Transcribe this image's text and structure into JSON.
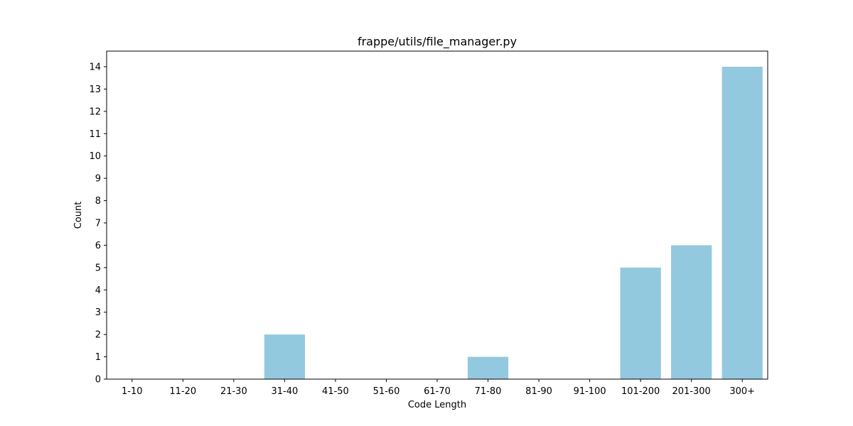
{
  "chart_data": {
    "type": "bar",
    "title": "frappe/utils/file_manager.py",
    "xlabel": "Code Length",
    "ylabel": "Count",
    "categories": [
      "1-10",
      "11-20",
      "21-30",
      "31-40",
      "41-50",
      "51-60",
      "61-70",
      "71-80",
      "81-90",
      "91-100",
      "101-200",
      "201-300",
      "300+"
    ],
    "values": [
      0,
      0,
      0,
      2,
      0,
      0,
      0,
      1,
      0,
      0,
      5,
      6,
      14
    ],
    "ylim": [
      0,
      14.7
    ],
    "yticks": [
      0,
      1,
      2,
      3,
      4,
      5,
      6,
      7,
      8,
      9,
      10,
      11,
      12,
      13,
      14
    ],
    "grid": false,
    "legend": "none",
    "bar_color": "#92c9df"
  }
}
